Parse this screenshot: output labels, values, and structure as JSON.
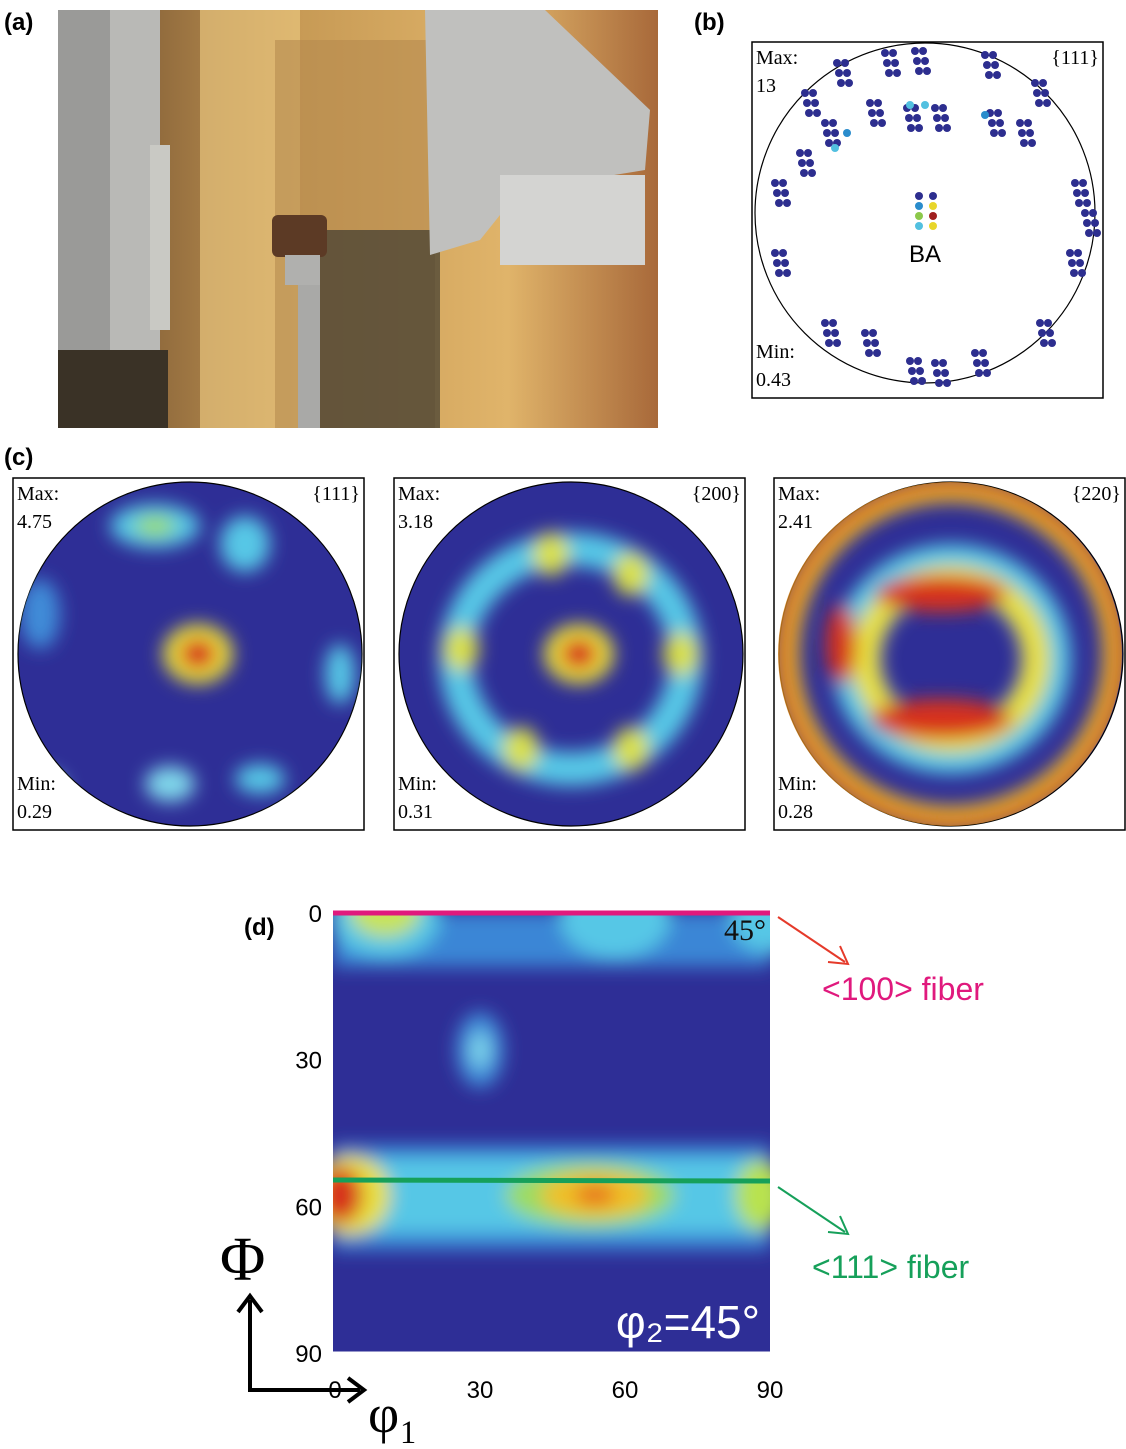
{
  "panel_a": {
    "label": "(a)"
  },
  "panel_b": {
    "label": "(b)",
    "plane": "{111}",
    "max_label": "Max:",
    "max": 13,
    "min_label": "Min:",
    "min": 0.43,
    "direction": "BA"
  },
  "panel_c": {
    "label": "(c)",
    "max_label": "Max:",
    "min_label": "Min:",
    "figures": [
      {
        "plane": "{111}",
        "max": 4.75,
        "min": 0.29
      },
      {
        "plane": "{200}",
        "max": 3.18,
        "min": 0.31
      },
      {
        "plane": "{220}",
        "max": 2.41,
        "min": 0.28
      }
    ]
  },
  "panel_d": {
    "label": "(d)",
    "section": "φ₂=45°",
    "corner": "45°",
    "y_label": "Φ",
    "x_label": "φ₁",
    "yticks": [
      0,
      30,
      60,
      90
    ],
    "xticks": [
      0,
      30,
      60,
      90
    ],
    "fibers": [
      {
        "name": "<100> fiber",
        "color": "#e0197d"
      },
      {
        "name": "<111> fiber",
        "color": "#16a05a"
      }
    ]
  }
}
